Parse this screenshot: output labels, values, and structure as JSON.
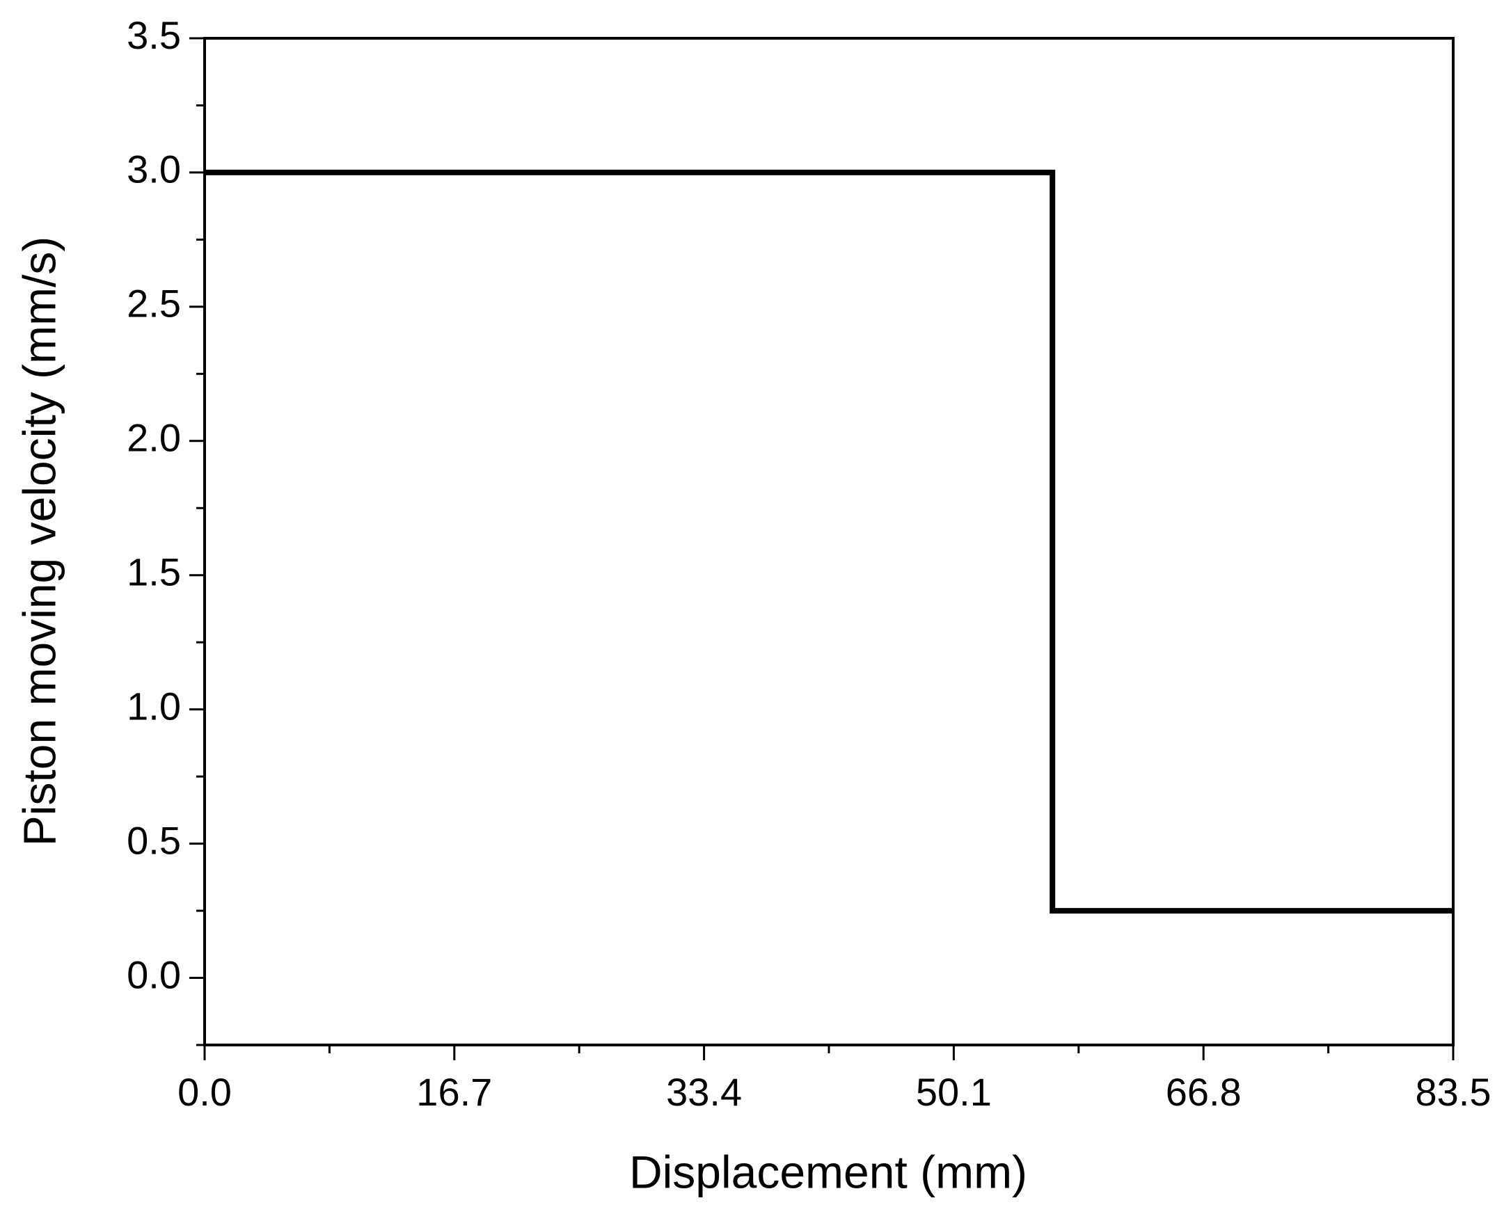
{
  "chart_data": {
    "type": "line",
    "x_label": "Displacement (mm)",
    "y_label": "Piston moving velocity (mm/s)",
    "x": [
      0,
      56.7,
      56.7,
      83.5
    ],
    "series": [
      {
        "color": "#000000",
        "values": [
          3.0,
          3.0,
          0.25,
          0.25
        ]
      }
    ],
    "xlim": [
      0,
      83.5
    ],
    "xticks": [
      {
        "value": 0,
        "label": "0.0"
      },
      16.7,
      33.4,
      50.1,
      66.8,
      83.5
    ],
    "ylim": [
      -0.25,
      3.5
    ],
    "yticks": [
      {
        "value": 0,
        "label": "0.0"
      },
      0.5,
      {
        "value": 1,
        "label": "1.0"
      },
      1.5,
      {
        "value": 2,
        "label": "2.0"
      },
      2.5,
      {
        "value": 3,
        "label": "3.0"
      },
      3.5
    ],
    "grid": false
  }
}
